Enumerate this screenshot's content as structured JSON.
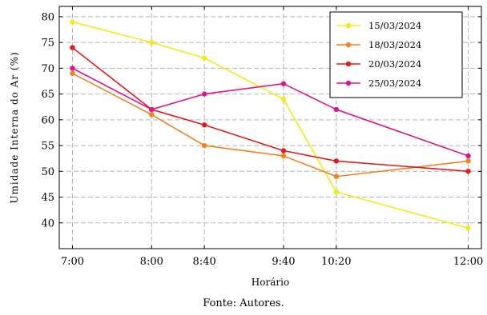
{
  "chart_data": {
    "type": "line",
    "xlabel": "Horário",
    "ylabel": "Umidade Interna do Ar (%)",
    "ylim": [
      35,
      82
    ],
    "x_minutes": [
      420,
      480,
      520,
      580,
      620,
      720
    ],
    "x_tick_labels": [
      "7:00",
      "8:00",
      "8:40",
      "9:40",
      "10:20",
      "12:00"
    ],
    "y_ticks": [
      40,
      45,
      50,
      55,
      60,
      65,
      70,
      75,
      80
    ],
    "grid": true,
    "legend_position": "top-right",
    "series": [
      {
        "name": "15/03/2024",
        "color": "#f5ea14",
        "values": [
          79,
          75,
          72,
          64,
          46,
          39
        ]
      },
      {
        "name": "18/03/2024",
        "color": "#f58220",
        "values": [
          69,
          61,
          55,
          53,
          49,
          52
        ]
      },
      {
        "name": "20/03/2024",
        "color": "#e41b1b",
        "values": [
          74,
          62,
          59,
          54,
          52,
          50
        ]
      },
      {
        "name": "25/03/2024",
        "color": "#e0158c",
        "values": [
          70,
          62,
          65,
          67,
          62,
          53
        ]
      }
    ]
  },
  "caption": "Fonte: Autores."
}
